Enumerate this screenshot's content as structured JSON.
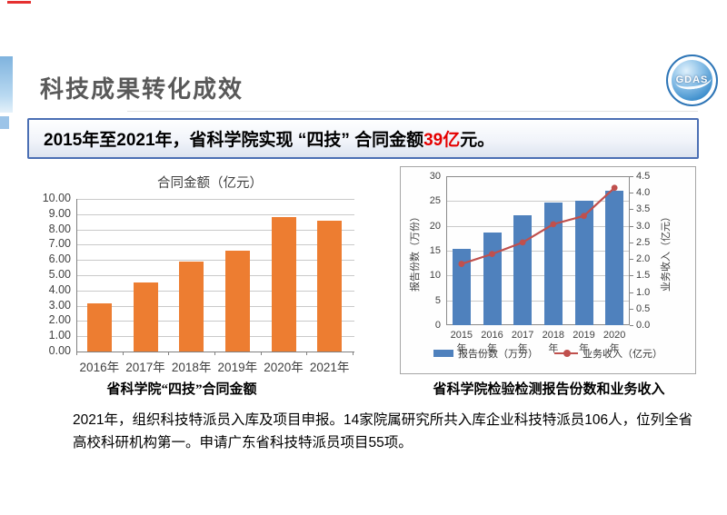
{
  "page": {
    "title": "科技成果转化成效",
    "logo_text": "GDAS",
    "banner": {
      "text_before": "2015年至2021年，省科学院实现 “四技” 合同金额",
      "highlight": "39亿",
      "text_after": "元。"
    },
    "footer_lines": [
      "2021年，组织科技特派员入库及项目申报。14家院属研究所共入库企业科技特派员106人，位列全省",
      "高校科研机构第一。申请广东省科技特派员项目55项。"
    ]
  },
  "colors": {
    "orange_bar": "#ED7D31",
    "blue_bar": "#4F81BD",
    "red_line": "#C0504D",
    "banner_border": "#4B6FB4",
    "banner_highlight": "#E50000",
    "title_gray": "#595959",
    "accent_blue": "#7FB3DE"
  },
  "chart_data": [
    {
      "type": "bar",
      "title": "合同金额（亿元）",
      "caption": "省科学院“四技”合同金额",
      "categories": [
        "2016年",
        "2017年",
        "2018年",
        "2019年",
        "2020年",
        "2021年"
      ],
      "values": [
        3.15,
        4.55,
        5.9,
        6.6,
        8.8,
        8.55
      ],
      "bar_color": "#ED7D31",
      "xlabel": "",
      "ylabel": "",
      "ylim": [
        0,
        10
      ],
      "ytick_step": 1,
      "ytick_decimals": 2,
      "grid": true,
      "legend_position": "none"
    },
    {
      "type": "bar+line",
      "title": "",
      "caption": "省科学院检验检测报告份数和业务收入",
      "categories": [
        "2015年",
        "2016年",
        "2017年",
        "2018年",
        "2019年",
        "2020年"
      ],
      "series": [
        {
          "name": "报告份数（万分）",
          "type": "bar",
          "axis": "left",
          "values": [
            15.3,
            18.6,
            22.2,
            24.7,
            25.1,
            27.1
          ],
          "color": "#4F81BD"
        },
        {
          "name": "业务收入（亿元）",
          "type": "line",
          "axis": "right",
          "values": [
            1.85,
            2.15,
            2.5,
            3.05,
            3.3,
            4.15
          ],
          "color": "#C0504D"
        }
      ],
      "left_axis": {
        "label": "报告份数（万份）",
        "min": 0,
        "max": 30,
        "step": 5,
        "decimals": 0
      },
      "right_axis": {
        "label": "业务收入（亿元）",
        "min": 0,
        "max": 4.5,
        "step": 0.5,
        "decimals": 1
      },
      "grid": true,
      "legend_position": "bottom"
    }
  ]
}
